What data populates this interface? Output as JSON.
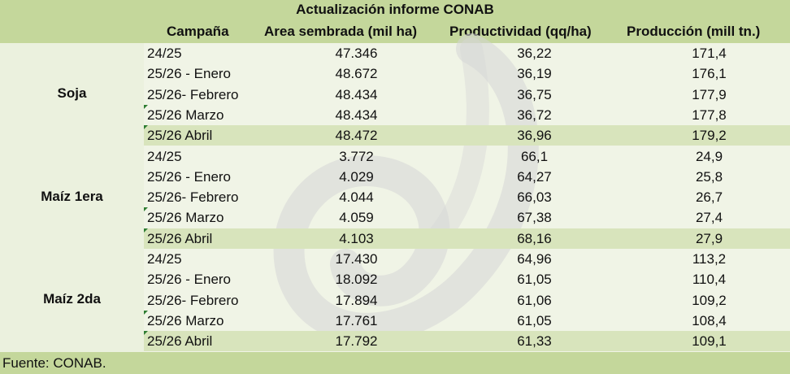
{
  "title": "Actualización informe CONAB",
  "headers": {
    "campana": "Campaña",
    "area": "Area sembrada (mil ha)",
    "productividad": "Productividad (qq/ha)",
    "produccion": "Producción (mill tn.)"
  },
  "crops": [
    {
      "name": "Soja",
      "rows": [
        {
          "campana": "24/25",
          "area": "47.346",
          "productividad": "36,22",
          "produccion": "171,4"
        },
        {
          "campana": "25/26 - Enero",
          "area": "48.672",
          "productividad": "36,19",
          "produccion": "176,1"
        },
        {
          "campana": "25/26- Febrero",
          "area": "48.434",
          "productividad": "36,75",
          "produccion": "177,9"
        },
        {
          "campana": "25/26 Marzo",
          "area": "48.434",
          "productividad": "36,72",
          "produccion": "177,8"
        },
        {
          "campana": "25/26 Abril",
          "area": "48.472",
          "productividad": "36,96",
          "produccion": "179,2"
        }
      ]
    },
    {
      "name": "Maíz 1era",
      "rows": [
        {
          "campana": "24/25",
          "area": "3.772",
          "productividad": "66,1",
          "produccion": "24,9"
        },
        {
          "campana": "25/26 - Enero",
          "area": "4.029",
          "productividad": "64,27",
          "produccion": "25,8"
        },
        {
          "campana": "25/26- Febrero",
          "area": "4.044",
          "productividad": "66,03",
          "produccion": "26,7"
        },
        {
          "campana": "25/26 Marzo",
          "area": "4.059",
          "productividad": "67,38",
          "produccion": "27,4"
        },
        {
          "campana": "25/26 Abril",
          "area": "4.103",
          "productividad": "68,16",
          "produccion": "27,9"
        }
      ]
    },
    {
      "name": "Maíz 2da",
      "rows": [
        {
          "campana": "24/25",
          "area": "17.430",
          "productividad": "64,96",
          "produccion": "113,2"
        },
        {
          "campana": "25/26 - Enero",
          "area": "18.092",
          "productividad": "61,05",
          "produccion": "110,4"
        },
        {
          "campana": "25/26- Febrero",
          "area": "17.894",
          "productividad": "61,06",
          "produccion": "109,2"
        },
        {
          "campana": "25/26 Marzo",
          "area": "17.761",
          "productividad": "61,05",
          "produccion": "108,4"
        },
        {
          "campana": "25/26 Abril",
          "area": "17.792",
          "productividad": "61,33",
          "produccion": "109,1"
        }
      ]
    }
  ],
  "footer": "Fuente: CONAB.",
  "colors": {
    "header_bg": "#c4d79b",
    "body_bg": "#ebf1de",
    "highlight_row": "#d8e4bc",
    "comment_marker": "#2e7d32"
  },
  "watermark_icon": "leaf-logo-icon"
}
